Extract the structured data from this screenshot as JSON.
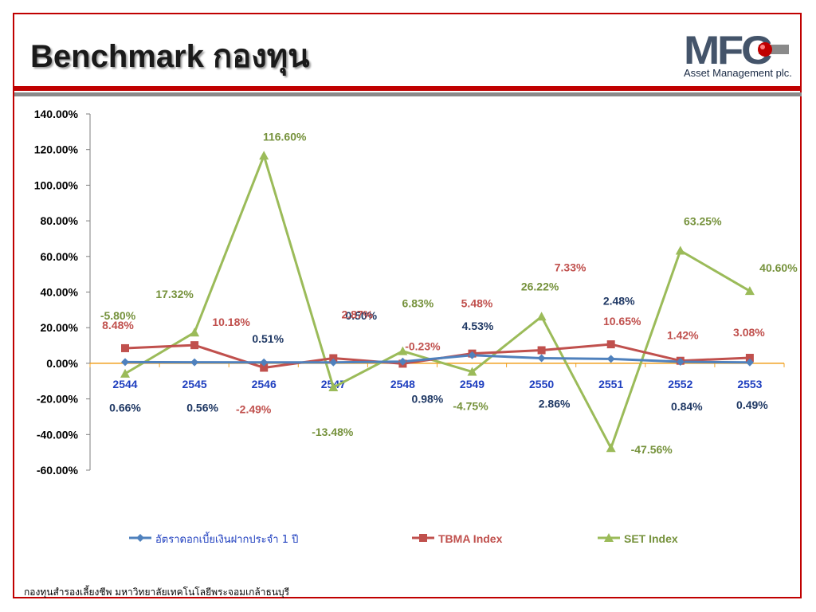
{
  "header": {
    "title": "Benchmark กองทุน",
    "logo_text": "MFC",
    "logo_subtitle": "Asset Management plc."
  },
  "footer": {
    "text": "กองทุนสำรองเลี้ยงชีพ มหาวิทยาลัยเทคโนโลยีพระจอมเกล้าธนบุรี"
  },
  "colors": {
    "brand_red": "#c00000",
    "series_blue": "#4f81bd",
    "series_red": "#c0504d",
    "series_green": "#9bbb59",
    "zero_line": "#f0a020"
  },
  "chart_data": {
    "type": "line",
    "categories": [
      "2544",
      "2545",
      "2546",
      "2547",
      "2548",
      "2549",
      "2550",
      "2551",
      "2552",
      "2553"
    ],
    "ylim": [
      -60,
      140
    ],
    "ytick_step": 20,
    "ytick_labels": [
      "140.00%",
      "120.00%",
      "100.00%",
      "80.00%",
      "60.00%",
      "40.00%",
      "20.00%",
      "0.00%",
      "-20.00%",
      "-40.00%",
      "-60.00%"
    ],
    "grid": false,
    "legend_position": "bottom",
    "series": [
      {
        "name": "อัตราดอกเบี้ยเงินฝากประจำ 1 ปี",
        "marker": "diamond",
        "values": [
          0.66,
          0.56,
          0.51,
          0.5,
          0.98,
          4.53,
          2.86,
          2.48,
          0.84,
          0.49
        ],
        "labels": [
          "0.66%",
          "0.56%",
          "0.51%",
          "0.50%",
          "0.98%",
          "4.53%",
          "2.86%",
          "2.48%",
          "0.84%",
          "0.49%"
        ]
      },
      {
        "name": "TBMA Index",
        "marker": "square",
        "values": [
          8.48,
          10.18,
          -2.49,
          2.87,
          -0.23,
          5.48,
          7.33,
          10.65,
          1.42,
          3.08
        ],
        "labels": [
          "8.48%",
          "10.18%",
          "-2.49%",
          "2.87%",
          "-0.23%",
          "5.48%",
          "7.33%",
          "10.65%",
          "1.42%",
          "3.08%"
        ]
      },
      {
        "name": "SET Index",
        "marker": "triangle",
        "values": [
          -5.8,
          17.32,
          116.6,
          -13.48,
          6.83,
          -4.75,
          26.22,
          -47.56,
          63.25,
          40.6
        ],
        "labels": [
          "-5.80%",
          "17.32%",
          "116.60%",
          "-13.48%",
          "6.83%",
          "-4.75%",
          "26.22%",
          "-47.56%",
          "63.25%",
          "40.60%"
        ]
      }
    ]
  }
}
